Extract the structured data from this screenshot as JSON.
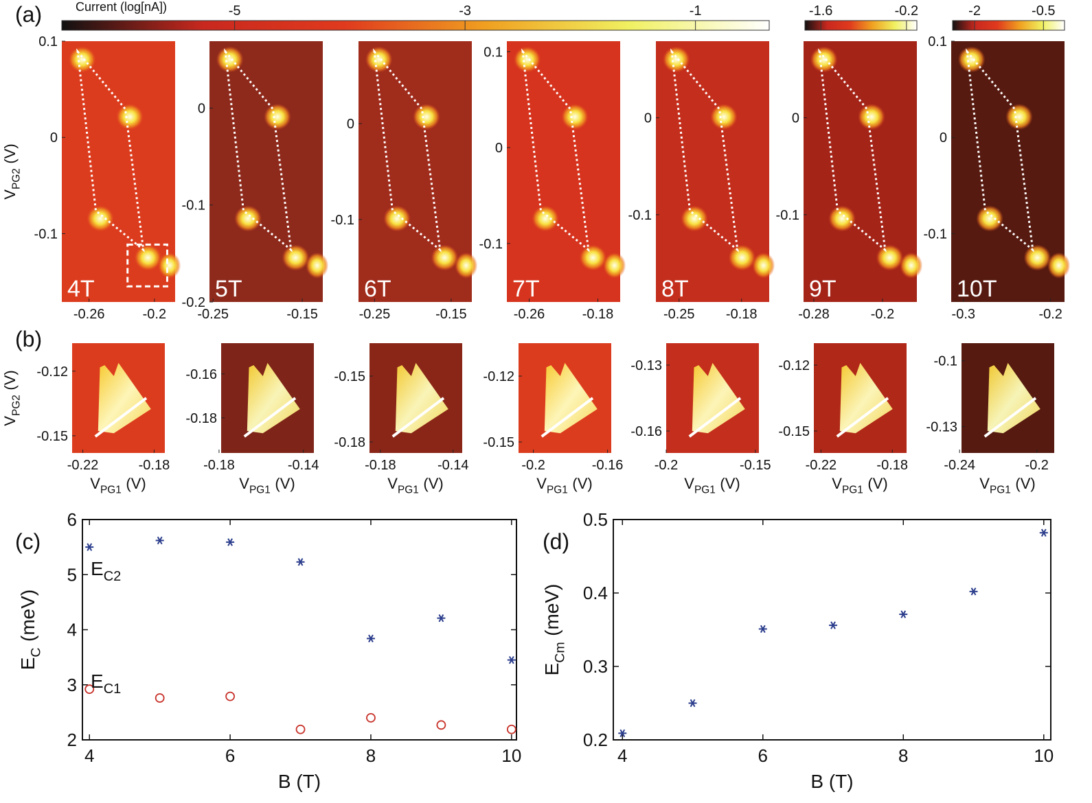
{
  "panel_labels": {
    "a": "(a)",
    "b": "(b)",
    "c": "(c)",
    "d": "(d)"
  },
  "colorbars": [
    {
      "label": "Current (log[nA])",
      "lim": [
        -6.5,
        -0.36
      ],
      "ticks": [
        -5,
        -3,
        -1
      ],
      "colors": [
        "#111111",
        "#c8281e",
        "#e03a1e",
        "#f0a020",
        "#f0f060",
        "#ffffff"
      ]
    },
    {
      "lim": [
        -1.86,
        -0.03
      ],
      "ticks": [
        -1.6,
        -0.2
      ],
      "colors": [
        "#111111",
        "#c8281e",
        "#e03a1e",
        "#f0a020",
        "#f0f060",
        "#ffffff"
      ]
    },
    {
      "lim": [
        -2.48,
        -0.04
      ],
      "ticks": [
        -2,
        -0.5
      ],
      "colors": [
        "#111111",
        "#c8281e",
        "#e03a1e",
        "#f0a020",
        "#f0f060",
        "#ffffff"
      ]
    }
  ],
  "maps_a": {
    "ylabel": {
      "main": "V",
      "sub": "PG2",
      "unit": "(V)"
    },
    "panels": [
      {
        "field": "4T",
        "background": "#dc3c1e",
        "xlim": [
          -0.285,
          -0.181
        ],
        "ylim": [
          -0.171,
          0.1
        ],
        "xticks": [
          -0.26,
          -0.2
        ],
        "yticks": [
          0.1,
          0,
          -0.1
        ]
      },
      {
        "field": "5T",
        "background": "#8e2a1c",
        "xlim": [
          -0.254,
          -0.127
        ],
        "ylim": [
          -0.2,
          0.069
        ],
        "xticks": [
          -0.25,
          -0.15
        ],
        "yticks": [
          0,
          -0.1,
          -0.2
        ]
      },
      {
        "field": "6T",
        "background": "#a02c1c",
        "xlim": [
          -0.271,
          -0.123
        ],
        "ylim": [
          -0.186,
          0.086
        ],
        "xticks": [
          -0.25,
          -0.15
        ],
        "yticks": [
          0,
          -0.1
        ]
      },
      {
        "field": "7T",
        "background": "#d6341e",
        "xlim": [
          -0.286,
          -0.154
        ],
        "ylim": [
          -0.161,
          0.111
        ],
        "xticks": [
          -0.26,
          -0.18
        ],
        "yticks": [
          0.1,
          0,
          -0.1
        ]
      },
      {
        "field": "8T",
        "background": "#c42e1c",
        "xlim": [
          -0.276,
          -0.149
        ],
        "ylim": [
          -0.19,
          0.079
        ],
        "xticks": [
          -0.25,
          -0.18
        ],
        "yticks": [
          0,
          -0.1
        ]
      },
      {
        "field": "9T",
        "background": "#a42418",
        "xlim": [
          -0.292,
          -0.16
        ],
        "ylim": [
          -0.19,
          0.079
        ],
        "xticks": [
          -0.28,
          -0.2
        ],
        "yticks": [
          0,
          -0.1
        ]
      },
      {
        "field": "10T",
        "background": "#561a10",
        "xlim": [
          -0.314,
          -0.184
        ],
        "ylim": [
          -0.171,
          0.1
        ],
        "xticks": [
          -0.3,
          -0.2
        ],
        "yticks": [
          0.1,
          0,
          -0.1
        ]
      }
    ]
  },
  "maps_b": {
    "ylabel": {
      "main": "V",
      "sub": "PG2",
      "unit": "(V)"
    },
    "xlabel": {
      "main": "V",
      "sub": "PG1",
      "unit": "(V)"
    },
    "panels": [
      {
        "background": "#dc3c1e",
        "xlim": [
          -0.226,
          -0.174
        ],
        "ylim": [
          -0.158,
          -0.107
        ],
        "xticks": [
          -0.22,
          -0.18
        ],
        "yticks": [
          -0.12,
          -0.15
        ]
      },
      {
        "background": "#7e2418",
        "xlim": [
          -0.179,
          -0.135
        ],
        "ylim": [
          -0.196,
          -0.146
        ],
        "xticks": [
          -0.18,
          -0.14
        ],
        "yticks": [
          -0.16,
          -0.18
        ]
      },
      {
        "background": "#8a2618",
        "xlim": [
          -0.186,
          -0.135
        ],
        "ylim": [
          -0.185,
          -0.135
        ],
        "xticks": [
          -0.18,
          -0.14
        ],
        "yticks": [
          -0.15,
          -0.18
        ]
      },
      {
        "background": "#dc3c1e",
        "xlim": [
          -0.208,
          -0.158
        ],
        "ylim": [
          -0.155,
          -0.105
        ],
        "xticks": [
          -0.2,
          -0.16
        ],
        "yticks": [
          -0.12,
          -0.15
        ]
      },
      {
        "background": "#c42e1c",
        "xlim": [
          -0.2,
          -0.148
        ],
        "ylim": [
          -0.17,
          -0.12
        ],
        "xticks": [
          -0.2,
          -0.15
        ],
        "yticks": [
          -0.13,
          -0.16
        ]
      },
      {
        "background": "#b02818",
        "xlim": [
          -0.224,
          -0.172
        ],
        "ylim": [
          -0.16,
          -0.11
        ],
        "xticks": [
          -0.22,
          -0.18
        ],
        "yticks": [
          -0.12,
          -0.15
        ]
      },
      {
        "background": "#561a10",
        "xlim": [
          -0.239,
          -0.191
        ],
        "ylim": [
          -0.142,
          -0.092
        ],
        "xticks": [
          -0.24,
          -0.2
        ],
        "yticks": [
          -0.1,
          -0.13
        ]
      }
    ]
  },
  "chart_data": [
    {
      "type": "scatter",
      "xlabel": "B (T)",
      "ylabel": {
        "main": "E",
        "sub": "C",
        "unit": "(meV)"
      },
      "xlim": [
        3.9,
        10.07
      ],
      "ylim": [
        2,
        6
      ],
      "xticks": [
        4,
        6,
        8,
        10
      ],
      "yticks": [
        2,
        3,
        4,
        5,
        6
      ],
      "x": [
        4,
        5,
        6,
        7,
        8,
        9,
        10
      ],
      "series": [
        {
          "label": {
            "main": "E",
            "sub": "C2"
          },
          "marker": "star",
          "color": "#2b3d8c",
          "values": [
            5.5,
            5.62,
            5.59,
            5.23,
            3.84,
            4.21,
            3.45
          ]
        },
        {
          "label": {
            "main": "E",
            "sub": "C1"
          },
          "marker": "circle",
          "color": "#c8322a",
          "values": [
            2.92,
            2.76,
            2.79,
            2.19,
            2.4,
            2.27,
            2.19
          ]
        }
      ]
    },
    {
      "type": "scatter",
      "xlabel": "B (T)",
      "ylabel": {
        "main": "E",
        "sub": "Cm",
        "unit": "(meV)"
      },
      "xlim": [
        3.87,
        10.1
      ],
      "ylim": [
        0.2,
        0.5
      ],
      "xticks": [
        4,
        6,
        8,
        10
      ],
      "yticks": [
        0.2,
        0.3,
        0.4,
        0.5
      ],
      "x": [
        4,
        5,
        6,
        7,
        8,
        9,
        10
      ],
      "series": [
        {
          "marker": "star",
          "color": "#2b3d8c",
          "values": [
            0.209,
            0.25,
            0.351,
            0.356,
            0.371,
            0.402,
            0.482
          ]
        }
      ]
    }
  ]
}
